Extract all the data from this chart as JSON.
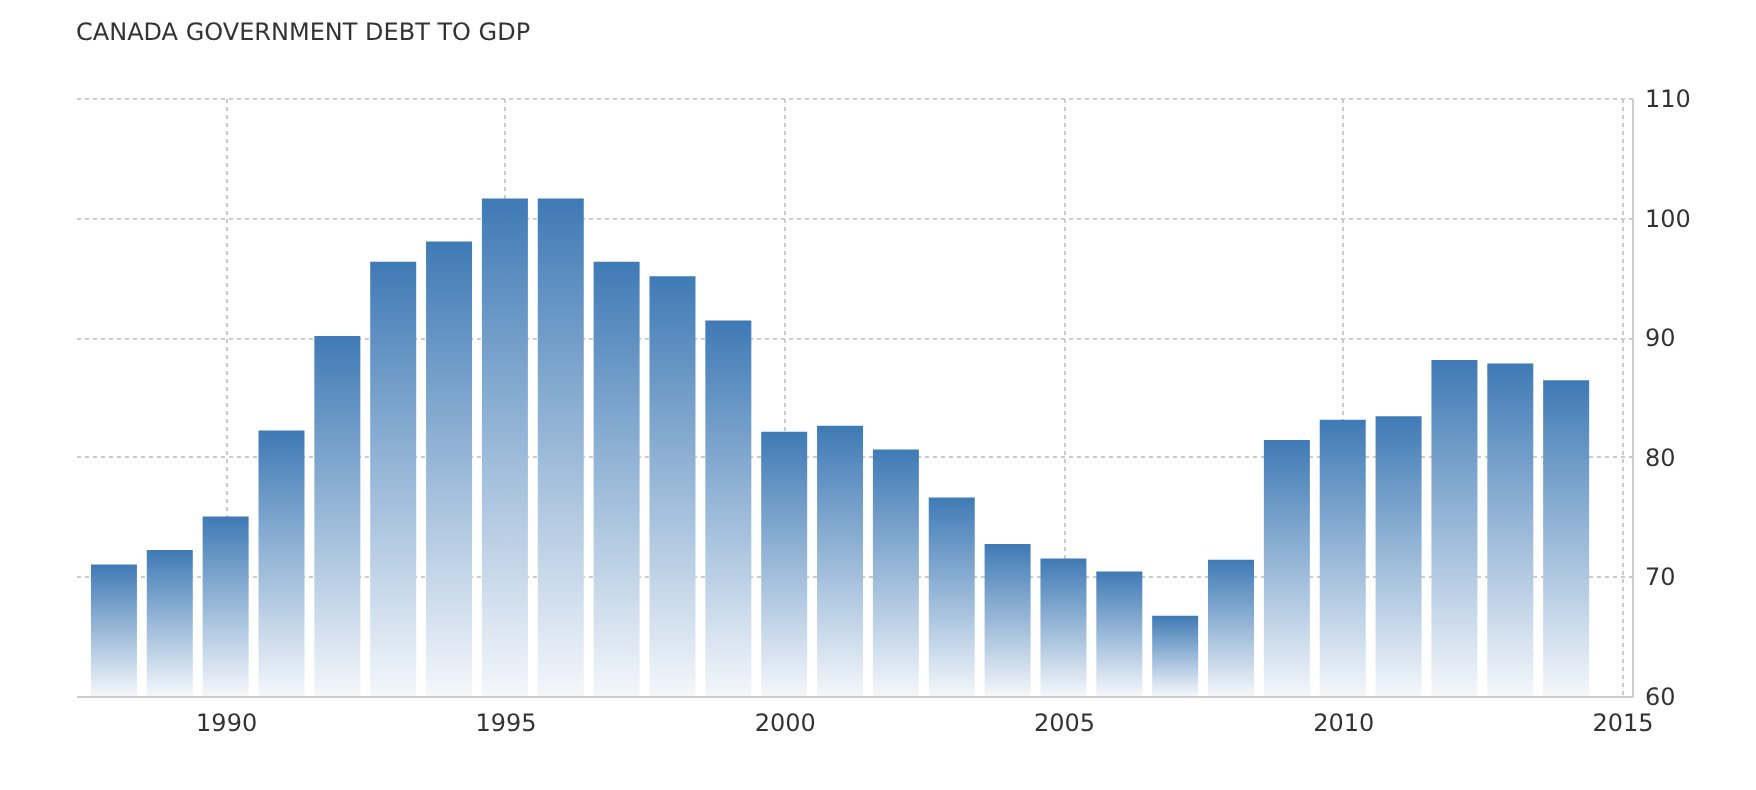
{
  "chart_data": {
    "type": "bar",
    "title": "CANADA GOVERNMENT DEBT TO GDP",
    "x": [
      1988,
      1989,
      1990,
      1991,
      1992,
      1993,
      1994,
      1995,
      1996,
      1997,
      1998,
      1999,
      2000,
      2001,
      2002,
      2003,
      2004,
      2005,
      2006,
      2007,
      2008,
      2009,
      2010,
      2011,
      2012,
      2013,
      2014
    ],
    "values": [
      71.0,
      72.2,
      75.0,
      82.2,
      90.1,
      96.3,
      98.0,
      101.6,
      101.6,
      96.3,
      95.1,
      91.4,
      82.1,
      82.6,
      80.6,
      76.6,
      72.7,
      71.5,
      70.4,
      66.7,
      71.4,
      81.4,
      83.1,
      83.4,
      88.1,
      87.8,
      86.4
    ],
    "color": "#3f7ab5",
    "xlim": [
      1987.5,
      2015
    ],
    "xticks": [
      1990,
      1995,
      2000,
      2005,
      2010,
      2015
    ],
    "ylim": [
      60,
      110
    ],
    "yticks": [
      60,
      70,
      80,
      90,
      100,
      110
    ],
    "grid": true
  }
}
